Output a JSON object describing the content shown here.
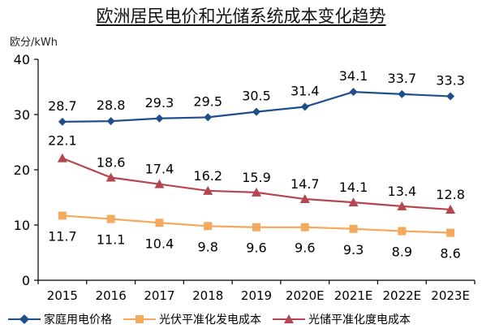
{
  "title": "欧洲居民电价和光储系统成本变化趋势",
  "unit_label": "欧分/kWh",
  "colors": {
    "home": "#1f4e8c",
    "pv": "#f5a95c",
    "storage": "#b5464f",
    "axis": "#000000"
  },
  "chart_data": {
    "type": "line",
    "categories": [
      "2015",
      "2016",
      "2017",
      "2018",
      "2019",
      "2020E",
      "2021E",
      "2022E",
      "2023E"
    ],
    "ylim": [
      0,
      40
    ],
    "yticks": [
      0,
      10,
      20,
      30,
      40
    ],
    "grid": false,
    "legend_position": "bottom",
    "series": [
      {
        "name": "家庭用电价格",
        "marker": "diamond",
        "color": "#1f4e8c",
        "values": [
          28.7,
          28.8,
          29.3,
          29.5,
          30.5,
          31.4,
          34.1,
          33.7,
          33.3
        ],
        "labels": [
          "28.7",
          "28.8",
          "29.3",
          "29.5",
          "30.5",
          "31.4",
          "34.1",
          "33.7",
          "33.3"
        ]
      },
      {
        "name": "光伏平准化发电成本",
        "marker": "square",
        "color": "#f5a95c",
        "values": [
          11.7,
          11.1,
          10.4,
          9.8,
          9.6,
          9.6,
          9.3,
          8.9,
          8.6
        ],
        "labels": [
          "11.7",
          "11.1",
          "10.4",
          "9.8",
          "9.6",
          "9.6",
          "9.3",
          "8.9",
          "8.6"
        ]
      },
      {
        "name": "光储平准化度电成本",
        "marker": "triangle",
        "color": "#b5464f",
        "values": [
          22.1,
          18.6,
          17.4,
          16.2,
          15.9,
          14.7,
          14.1,
          13.4,
          12.8
        ],
        "labels": [
          "22.1",
          "18.6",
          "17.4",
          "16.2",
          "15.9",
          "14.7",
          "14.1",
          "13.4",
          "12.8"
        ]
      }
    ]
  }
}
